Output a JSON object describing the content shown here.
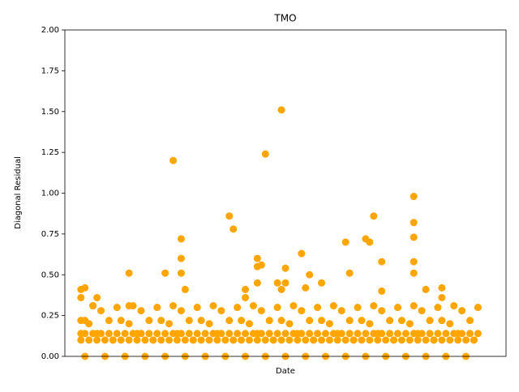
{
  "chart_data": {
    "type": "scatter",
    "title": "TMO",
    "x_label": "Date",
    "y_label": "Diagonal Residual",
    "color": "#ffa500",
    "grid": false,
    "xlim": [
      1,
      111
    ],
    "ylim": [
      0,
      2
    ],
    "yticks": [
      {
        "value": 0,
        "label": "0.00"
      },
      {
        "value": 0.25,
        "label": "0.25"
      },
      {
        "value": 0.5,
        "label": "0.50"
      },
      {
        "value": 0.75,
        "label": "0.75"
      },
      {
        "value": 1,
        "label": "1.00"
      },
      {
        "value": 1.25,
        "label": "1.25"
      },
      {
        "value": 1.5,
        "label": "1.50"
      },
      {
        "value": 1.75,
        "label": "1.75"
      },
      {
        "value": 2,
        "label": "2.00"
      }
    ],
    "x": [
      5,
      6,
      7,
      8,
      9,
      10,
      11,
      12,
      13,
      14,
      15,
      16,
      17,
      18,
      19,
      20,
      21,
      22,
      23,
      24,
      25,
      26,
      27,
      28,
      29,
      30,
      31,
      32,
      33,
      34,
      35,
      36,
      37,
      38,
      39,
      40,
      41,
      42,
      43,
      44,
      45,
      46,
      47,
      48,
      49,
      50,
      51,
      52,
      53,
      54,
      55,
      56,
      57,
      58,
      59,
      60,
      61,
      62,
      63,
      64,
      65,
      66,
      67,
      68,
      69,
      70,
      71,
      72,
      73,
      74,
      75,
      76,
      77,
      78,
      79,
      80,
      81,
      82,
      83,
      84,
      85,
      86,
      87,
      88,
      89,
      90,
      91,
      92,
      93,
      94,
      95,
      96,
      97,
      98,
      99,
      100,
      101,
      102,
      103,
      104,
      5,
      6,
      7,
      8,
      9,
      10,
      11,
      12,
      13,
      14,
      15,
      16,
      17,
      18,
      19,
      20,
      21,
      22,
      23,
      24,
      25,
      26,
      27,
      28,
      29,
      30,
      31,
      32,
      33,
      34,
      35,
      36,
      37,
      38,
      39,
      40,
      41,
      42,
      43,
      44,
      45,
      46,
      47,
      48,
      49,
      50,
      51,
      52,
      53,
      54,
      55,
      56,
      57,
      58,
      59,
      60,
      61,
      62,
      63,
      64,
      65,
      66,
      67,
      68,
      69,
      70,
      71,
      72,
      73,
      74,
      75,
      76,
      77,
      78,
      79,
      80,
      81,
      82,
      83,
      84,
      85,
      86,
      87,
      88,
      89,
      90,
      91,
      92,
      93,
      94,
      95,
      96,
      97,
      98,
      99,
      100,
      101,
      102,
      103,
      104,
      5,
      5,
      6,
      5,
      6,
      9,
      8,
      17,
      17,
      28,
      30,
      30,
      30,
      31,
      26,
      42,
      43,
      51,
      55,
      49,
      49,
      50,
      49,
      54,
      55,
      56,
      56,
      60,
      62,
      61,
      65,
      71,
      72,
      76,
      78,
      77,
      80,
      80,
      88,
      88,
      88,
      88,
      88,
      91,
      95,
      95,
      46,
      46
    ],
    "values": [
      0.1,
      0.14,
      0.1,
      0.14,
      0.1,
      0.14,
      0.1,
      0.14,
      0.1,
      0.14,
      0.1,
      0.14,
      0.1,
      0.14,
      0.1,
      0.14,
      0.1,
      0.14,
      0.1,
      0.14,
      0.1,
      0.14,
      0.1,
      0.14,
      0.1,
      0.14,
      0.1,
      0.14,
      0.1,
      0.14,
      0.1,
      0.14,
      0.1,
      0.14,
      0.1,
      0.14,
      0.1,
      0.14,
      0.1,
      0.14,
      0.1,
      0.14,
      0.1,
      0.14,
      0.1,
      0.14,
      0.1,
      0.14,
      0.1,
      0.14,
      0.1,
      0.14,
      0.1,
      0.14,
      0.1,
      0.14,
      0.1,
      0.14,
      0.1,
      0.14,
      0.1,
      0.14,
      0.1,
      0.14,
      0.1,
      0.14,
      0.1,
      0.14,
      0.1,
      0.14,
      0.1,
      0.14,
      0.1,
      0.14,
      0.1,
      0.14,
      0.1,
      0.14,
      0.1,
      0.14,
      0.1,
      0.14,
      0.1,
      0.14,
      0.1,
      0.14,
      0.1,
      0.14,
      0.1,
      0.14,
      0.1,
      0.14,
      0.1,
      0.14,
      0.1,
      0.14,
      0.1,
      0.14,
      0.1,
      0.14,
      0.22,
      0,
      0.2,
      0.31,
      0.14,
      0.28,
      0,
      0.22,
      0.1,
      0.3,
      0.22,
      0,
      0.2,
      0.31,
      0.14,
      0.28,
      0,
      0.22,
      0.1,
      0.3,
      0.22,
      0,
      0.2,
      0.31,
      0.14,
      0.28,
      0,
      0.22,
      0.1,
      0.3,
      0.22,
      0,
      0.2,
      0.31,
      0.14,
      0.28,
      0,
      0.22,
      0.1,
      0.3,
      0.22,
      0,
      0.2,
      0.31,
      0.14,
      0.28,
      0,
      0.22,
      0.1,
      0.3,
      0.22,
      0,
      0.2,
      0.31,
      0.14,
      0.28,
      0,
      0.22,
      0.1,
      0.3,
      0.22,
      0,
      0.2,
      0.31,
      0.14,
      0.28,
      0,
      0.22,
      0.1,
      0.3,
      0.22,
      0,
      0.2,
      0.31,
      0.14,
      0.28,
      0,
      0.22,
      0.1,
      0.3,
      0.22,
      0,
      0.2,
      0.31,
      0.14,
      0.28,
      0,
      0.22,
      0.1,
      0.3,
      0.22,
      0,
      0.2,
      0.31,
      0.14,
      0.28,
      0,
      0.22,
      0.1,
      0.3,
      0.41,
      0.36,
      0.42,
      0.14,
      0.22,
      0.36,
      0.31,
      0.51,
      0.31,
      1.2,
      0.72,
      0.6,
      0.51,
      0.41,
      0.51,
      0.86,
      0.78,
      1.24,
      1.51,
      0.6,
      0.55,
      0.56,
      0.45,
      0.45,
      0.41,
      0.54,
      0.45,
      0.63,
      0.5,
      0.42,
      0.45,
      0.7,
      0.51,
      0.72,
      0.86,
      0.7,
      0.58,
      0.4,
      0.98,
      0.82,
      0.73,
      0.58,
      0.51,
      0.41,
      0.42,
      0.36,
      0.41,
      0.36
    ]
  }
}
